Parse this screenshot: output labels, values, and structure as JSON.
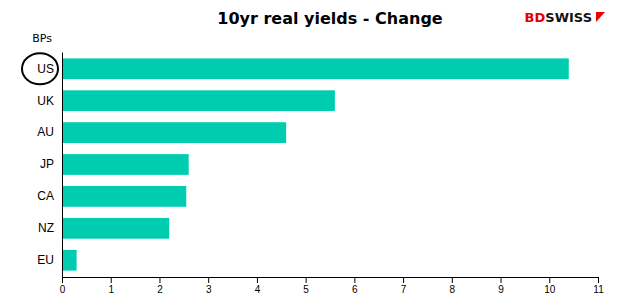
{
  "chart_data": {
    "type": "bar",
    "orientation": "horizontal",
    "title": "10yr real yields - Change",
    "ylabel": "BPs",
    "categories": [
      "EU",
      "NZ",
      "CA",
      "JP",
      "AU",
      "UK",
      "US"
    ],
    "values": [
      0.3,
      2.2,
      2.55,
      2.6,
      4.6,
      5.6,
      10.4
    ],
    "color": "#00CDB0",
    "xlim": [
      0,
      11
    ],
    "xticks": [
      0,
      1,
      2,
      3,
      4,
      5,
      6,
      7,
      8,
      9,
      10,
      11
    ],
    "grid": false,
    "annotations": [
      {
        "text": "BD",
        "color": "#e60000"
      },
      {
        "text": "SWISS",
        "color": "#111111"
      }
    ]
  }
}
